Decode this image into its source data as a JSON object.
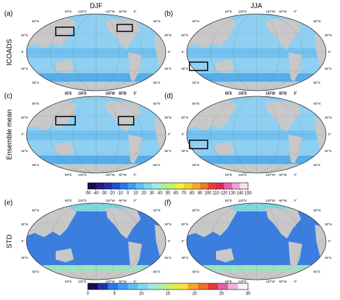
{
  "columns": [
    "DJF",
    "JJA"
  ],
  "rows": [
    "ICOADS",
    "Ensemble mean",
    "STD"
  ],
  "panels": [
    "(a)",
    "(b)",
    "(c)",
    "(d)",
    "(e)",
    "(f)"
  ],
  "lon_labels": [
    "60°E",
    "120°E",
    "120°W",
    "60°W",
    "0°"
  ],
  "lat_labels": [
    "60°N",
    "30°N",
    "0°",
    "30°S",
    "60°S"
  ],
  "colorbars": [
    {
      "ticks": [
        -50,
        -40,
        -30,
        -20,
        -10,
        0,
        10,
        20,
        30,
        40,
        50,
        60,
        70,
        80,
        90,
        100,
        110,
        120,
        130,
        140,
        150
      ]
    },
    {
      "ticks": [
        0,
        5,
        10,
        15,
        20,
        25,
        30
      ]
    }
  ]
}
